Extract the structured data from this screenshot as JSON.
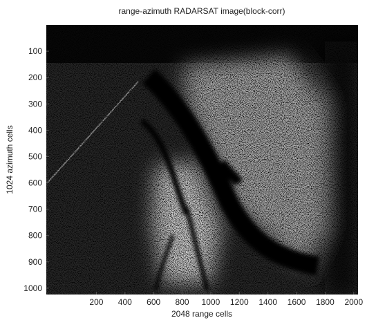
{
  "chart_data": {
    "type": "image",
    "title": "range-azimuth RADARSAT image(block-corr)",
    "xlabel": "2048 range cells",
    "ylabel": "1024 azimuth cells",
    "xlim": [
      -150,
      2030
    ],
    "ylim": [
      1024,
      0
    ],
    "xticks": [
      200,
      400,
      600,
      800,
      1000,
      1200,
      1400,
      1600,
      1800,
      2000
    ],
    "yticks": [
      100,
      200,
      300,
      400,
      500,
      600,
      700,
      800,
      900,
      1000
    ]
  }
}
